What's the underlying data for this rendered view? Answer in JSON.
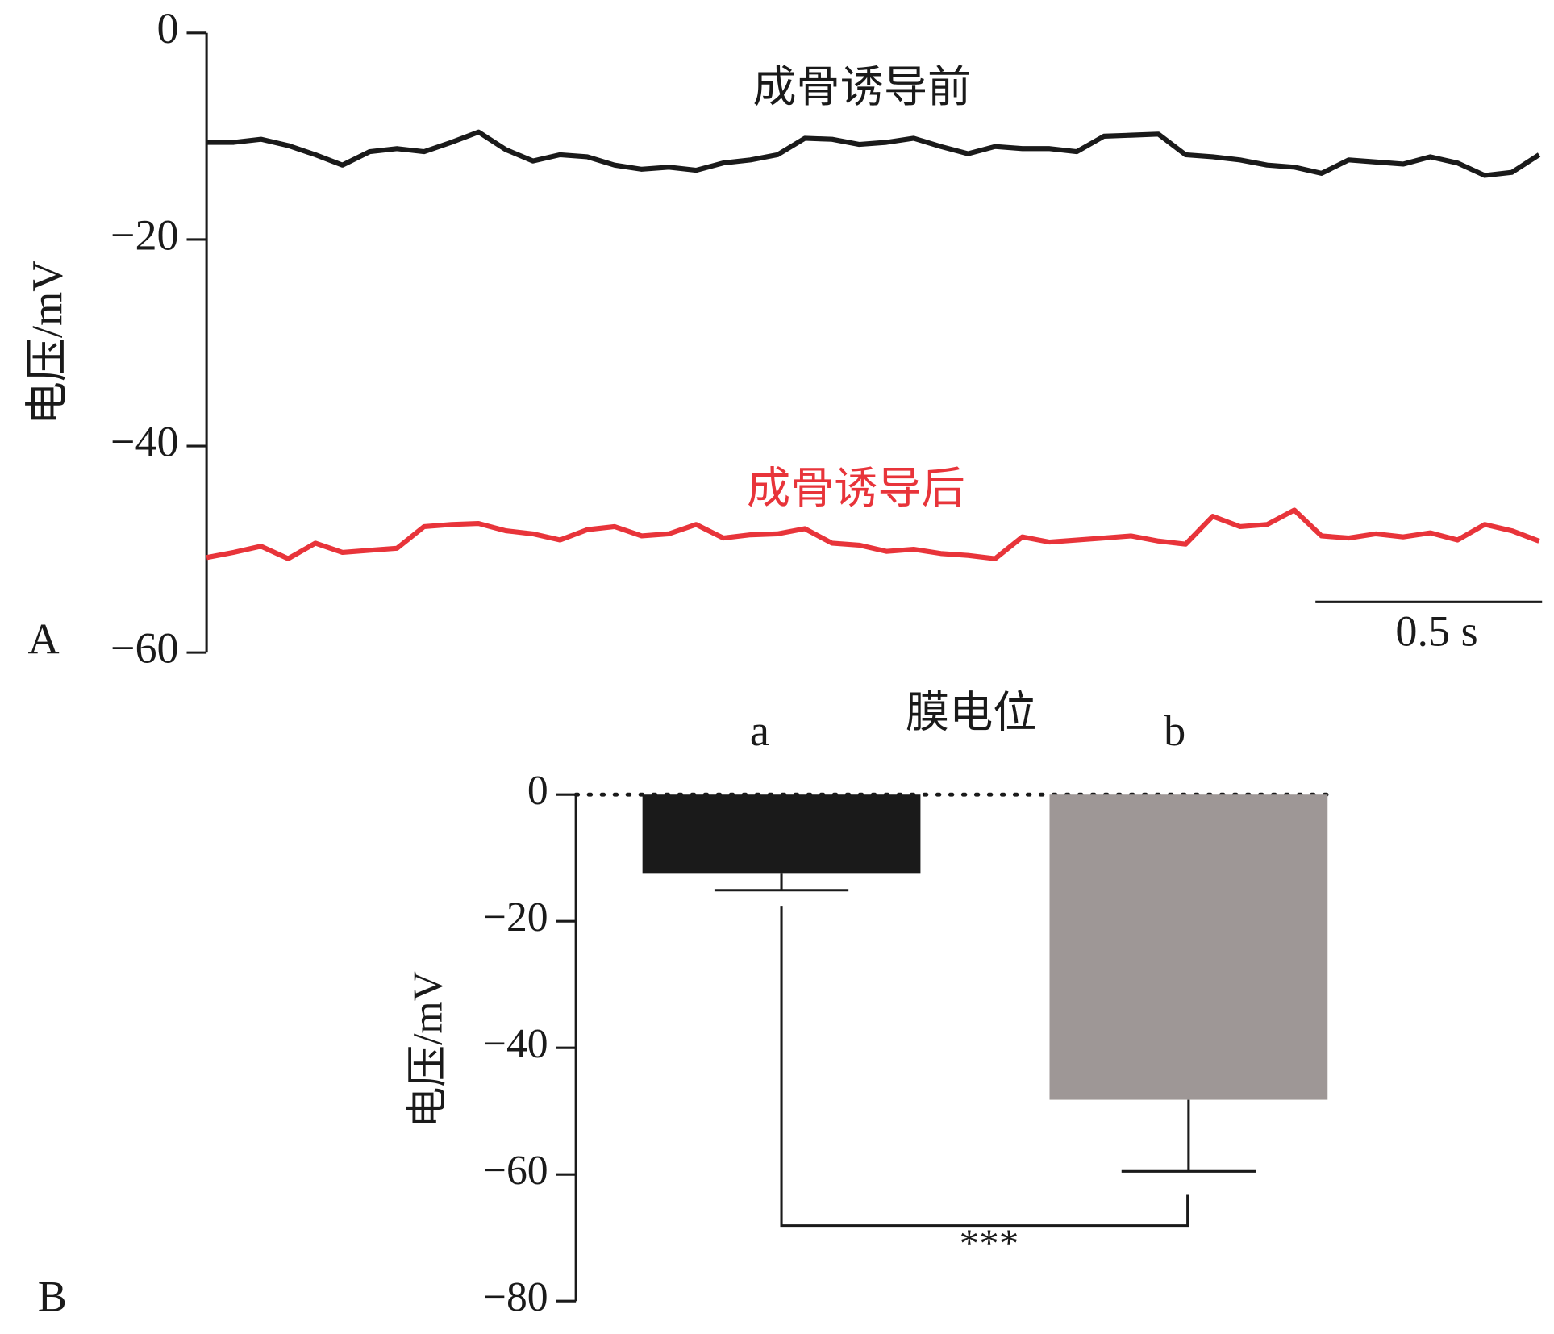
{
  "chart_data": [
    {
      "type": "line",
      "panel": "A",
      "ylabel": "电压/mV",
      "x": [
        0,
        0.06,
        0.12,
        0.18,
        0.24,
        0.3,
        0.36,
        0.42,
        0.48,
        0.54,
        0.6,
        0.66,
        0.72,
        0.78,
        0.84,
        0.9,
        0.96,
        1.02,
        1.08,
        1.14,
        1.2,
        1.26,
        1.32,
        1.38,
        1.44,
        1.5,
        1.56,
        1.62,
        1.68,
        1.74,
        1.8,
        1.86,
        1.92,
        1.98,
        2.04,
        2.1,
        2.16,
        2.22,
        2.28,
        2.34,
        2.4,
        2.46,
        2.52,
        2.58,
        2.64,
        2.7,
        2.76,
        2.82,
        2.88,
        2.94
      ],
      "xlim": [
        0,
        2.94
      ],
      "scalebar": {
        "value": 0.5,
        "label": "0.5 s"
      },
      "ylim": [
        -60,
        0
      ],
      "yticks": [
        0,
        {
          "value": -20,
          "label": "−20"
        },
        {
          "value": -40,
          "label": "−40"
        },
        {
          "value": -60,
          "label": "−60"
        }
      ],
      "series": [
        {
          "name": "成骨诱导前",
          "color": "#1a1a1a",
          "values": [
            -10.6,
            -10.6,
            -10.3,
            -10.9,
            -11.8,
            -12.8,
            -11.5,
            -11.2,
            -11.5,
            -10.6,
            -9.6,
            -11.3,
            -12.4,
            -11.8,
            -12,
            -12.8,
            -13.2,
            -13,
            -13.3,
            -12.6,
            -12.3,
            -11.8,
            -10.2,
            -10.3,
            -10.8,
            -10.6,
            -10.2,
            -11,
            -11.7,
            -11,
            -11.2,
            -11.2,
            -11.5,
            -10,
            -9.9,
            -9.8,
            -11.8,
            -12,
            -12.3,
            -12.8,
            -13,
            -13.6,
            -12.3,
            -12.5,
            -12.7,
            -12,
            -12.6,
            -13.8,
            -13.5,
            -11.8
          ]
        },
        {
          "name": "成骨诱导后",
          "color": "#e8343a",
          "values": [
            -50.8,
            -50.3,
            -49.7,
            -50.9,
            -49.4,
            -50.3,
            -50.1,
            -49.9,
            -47.8,
            -47.6,
            -47.5,
            -48.2,
            -48.5,
            -49.1,
            -48.1,
            -47.8,
            -48.7,
            -48.5,
            -47.6,
            -48.9,
            -48.6,
            -48.5,
            -48,
            -49.4,
            -49.6,
            -50.2,
            -50,
            -50.4,
            -50.6,
            -50.9,
            -48.8,
            -49.3,
            -49.1,
            -48.9,
            -48.7,
            -49.2,
            -49.5,
            -46.8,
            -47.8,
            -47.6,
            -46.2,
            -48.7,
            -48.9,
            -48.5,
            -48.8,
            -48.4,
            -49.1,
            -47.6,
            -48.2,
            -49.2
          ]
        }
      ]
    },
    {
      "type": "bar",
      "panel": "B",
      "title": "膜电位",
      "ylabel": "电压/mV",
      "categories": [
        "a",
        "b"
      ],
      "values": [
        -12.5,
        -48.2
      ],
      "errors": [
        2.6,
        11.3
      ],
      "colors": [
        "#1a1a1a",
        "#9e9796"
      ],
      "ylim": [
        -80,
        0
      ],
      "yticks": [
        0,
        {
          "value": -20,
          "label": "−20"
        },
        {
          "value": -40,
          "label": "−40"
        },
        {
          "value": -60,
          "label": "−60"
        },
        {
          "value": -80,
          "label": "−80"
        }
      ],
      "annotation": "***"
    }
  ]
}
